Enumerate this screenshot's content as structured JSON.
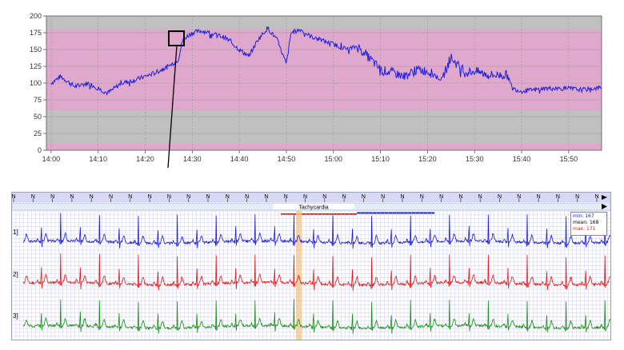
{
  "trend_chart": {
    "y_ticks": [
      "200",
      "175",
      "150",
      "125",
      "100",
      "75",
      "50",
      "25",
      "0"
    ],
    "x_ticks": [
      "14:00",
      "14:10",
      "14:20",
      "14:30",
      "14:40",
      "14:50",
      "15:00",
      "15:10",
      "15:20",
      "15:30",
      "15:40",
      "15:50"
    ],
    "colors": {
      "background": "#c0c0c0",
      "band": "#e0a8cc",
      "line": "#2020dd",
      "grid": "#9a9a9a"
    }
  },
  "ecg_strip": {
    "beat_label": "N",
    "episode_label": "Tachycardia",
    "lead_labels": [
      "1]",
      "2]",
      "3]"
    ],
    "stats": {
      "min": "min: 167",
      "mean": "mean: 168",
      "max": "max: 171"
    },
    "colors": {
      "lead1": "#1a1ad8",
      "lead2": "#e01818",
      "lead3": "#1a8a1a",
      "grid": "#c6c8ee",
      "highlight": "#f5c890"
    }
  },
  "chart_data": {
    "type": "line",
    "x": [
      "14:00",
      "14:02",
      "14:05",
      "14:08",
      "14:10",
      "14:12",
      "14:15",
      "14:18",
      "14:20",
      "14:22",
      "14:25",
      "14:27",
      "14:28",
      "14:30",
      "14:32",
      "14:35",
      "14:37",
      "14:40",
      "14:42",
      "14:44",
      "14:46",
      "14:48",
      "14:50",
      "14:51",
      "14:53",
      "14:55",
      "14:57",
      "15:00",
      "15:03",
      "15:05",
      "15:08",
      "15:10",
      "15:13",
      "15:15",
      "15:18",
      "15:20",
      "15:23",
      "15:25",
      "15:28",
      "15:30",
      "15:33",
      "15:35",
      "15:37",
      "15:38",
      "15:40",
      "15:43",
      "15:45",
      "15:48",
      "15:50",
      "15:53",
      "15:55",
      "15:57"
    ],
    "series": [
      {
        "values": [
          100,
          110,
          95,
          100,
          92,
          85,
          100,
          105,
          110,
          115,
          125,
          135,
          165,
          175,
          178,
          172,
          168,
          150,
          140,
          165,
          182,
          165,
          128,
          175,
          180,
          170,
          165,
          158,
          150,
          155,
          135,
          120,
          115,
          110,
          120,
          118,
          105,
          138,
          115,
          118,
          112,
          112,
          112,
          92,
          88,
          90,
          92,
          92,
          92,
          90,
          92,
          93
        ]
      }
    ],
    "ylim": [
      0,
      200
    ],
    "yticks": [
      0,
      25,
      50,
      75,
      100,
      125,
      150,
      175,
      200
    ],
    "band": [
      60,
      180
    ],
    "grid": true
  }
}
